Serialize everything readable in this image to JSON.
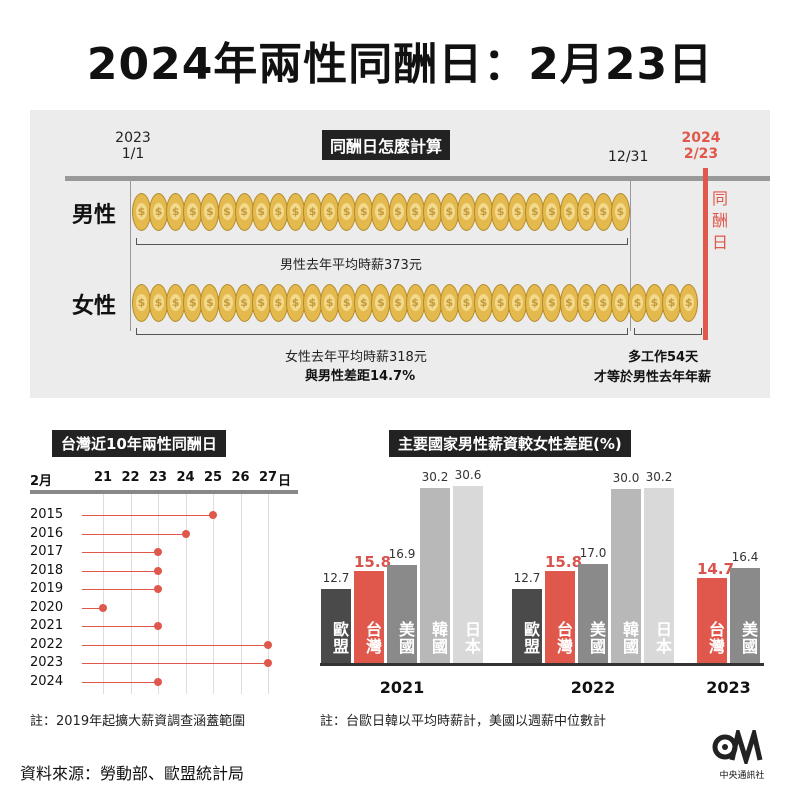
{
  "title": "2024年兩性同酬日：2月23日",
  "calc": {
    "header": "同酬日怎麼計算",
    "start_year": "2023",
    "start_date": "1/1",
    "year_end": "12/31",
    "equal_year": "2024",
    "equal_date": "2/23",
    "equal_label": [
      "同",
      "酬",
      "日"
    ],
    "male_label": "男性",
    "female_label": "女性",
    "male_note": "男性去年平均時薪373元",
    "female_note_1": "女性去年平均時薪318元",
    "female_note_2": "與男性差距14.7%",
    "extra_note_1": "多工作54天",
    "extra_note_2": "才等於男性去年年薪"
  },
  "timeline": {
    "header": "台灣近10年兩性同酬日",
    "month_label": "2月",
    "day_suffix": "日",
    "days": [
      "21",
      "22",
      "23",
      "24",
      "25",
      "26",
      "27"
    ],
    "note": "註：2019年起擴大薪資調查涵蓋範圍"
  },
  "chart_data": [
    {
      "type": "scatter",
      "title": "台灣近10年兩性同酬日",
      "xlabel": "2月",
      "x_unit": "日",
      "xlim": [
        21,
        27
      ],
      "categories": [
        "2015",
        "2016",
        "2017",
        "2018",
        "2019",
        "2020",
        "2021",
        "2022",
        "2023",
        "2024"
      ],
      "values": [
        25,
        24,
        23,
        23,
        23,
        21,
        23,
        27,
        27,
        23
      ]
    },
    {
      "type": "bar",
      "title": "主要國家男性薪資較女性差距(%)",
      "groups": [
        {
          "year": "2021",
          "bars": [
            {
              "name": "歐盟",
              "value": 12.7,
              "color": "#4a4a4a"
            },
            {
              "name": "台灣",
              "value": 15.8,
              "color": "#e0574c"
            },
            {
              "name": "美國",
              "value": 16.9,
              "color": "#8a8a8a"
            },
            {
              "name": "韓國",
              "value": 30.2,
              "color": "#b8b8b8"
            },
            {
              "name": "日本",
              "value": 30.6,
              "color": "#d9d9d9"
            }
          ]
        },
        {
          "year": "2022",
          "bars": [
            {
              "name": "歐盟",
              "value": 12.7,
              "color": "#4a4a4a"
            },
            {
              "name": "台灣",
              "value": 15.8,
              "color": "#e0574c"
            },
            {
              "name": "美國",
              "value": 17.0,
              "color": "#8a8a8a"
            },
            {
              "name": "韓國",
              "value": 30.0,
              "color": "#b8b8b8"
            },
            {
              "name": "日本",
              "value": 30.2,
              "color": "#d9d9d9"
            }
          ]
        },
        {
          "year": "2023",
          "bars": [
            {
              "name": "台灣",
              "value": 14.7,
              "color": "#e0574c"
            },
            {
              "name": "美國",
              "value": 16.4,
              "color": "#8a8a8a"
            }
          ]
        }
      ]
    }
  ],
  "bar_value_labels": [
    [
      "12.7",
      "15.8",
      "16.9",
      "30.2",
      "30.6"
    ],
    [
      "12.7",
      "15.8",
      "17.0",
      "30.0",
      "30.2"
    ],
    [
      "14.7",
      "16.4"
    ]
  ],
  "bar_note": "註：台歐日韓以平均時薪計，美國以週薪中位數計",
  "source": "資料來源：勞動部、歐盟統計局",
  "logo_text": "中央通訊社",
  "colors": {
    "accent": "#e0574c",
    "coin": "#e4b94e",
    "dark": "#222222"
  }
}
